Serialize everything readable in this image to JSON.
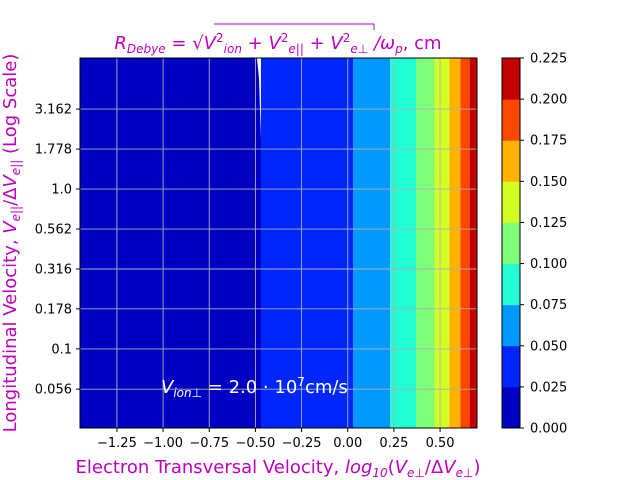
{
  "chart_data": {
    "type": "heatmap",
    "subtype": "filled-contour",
    "title": {
      "parts": [
        {
          "t": "R",
          "style": "italic"
        },
        {
          "t": "Debye",
          "style": "sub-italic"
        },
        {
          "t": " = ",
          "style": "normal"
        },
        {
          "t": "√",
          "style": "normal"
        },
        {
          "t": "V²ion + V²e|| + V²e⊥",
          "style": "radicand"
        },
        {
          "t": " /ω",
          "style": "italic"
        },
        {
          "t": "p",
          "style": "sub-italic"
        },
        {
          "t": ", cm",
          "style": "normal"
        }
      ],
      "radicand_parts": [
        {
          "t": "V",
          "style": "italic"
        },
        {
          "t": "2",
          "style": "sup"
        },
        {
          "t": "ion",
          "style": "sub-italic"
        },
        {
          "t": " + ",
          "style": "normal"
        },
        {
          "t": "V",
          "style": "italic"
        },
        {
          "t": "2",
          "style": "sup"
        },
        {
          "t": "e||",
          "style": "sub-italic"
        },
        {
          "t": " + ",
          "style": "normal"
        },
        {
          "t": "V",
          "style": "italic"
        },
        {
          "t": "2",
          "style": "sup"
        },
        {
          "t": "e⊥",
          "style": "sub-italic"
        }
      ]
    },
    "xlabel": "Electron Transversal Velocity, log10(Ve⊥/ΔVe⊥)",
    "ylabel": "Longitudinal Velocity, Ve||/ΔVe|| (Log Scale)",
    "annotation": "Vion⊥ = 2.0·10⁷cm/s",
    "xlim": [
      -1.45,
      0.7
    ],
    "x_ticks": [
      -1.25,
      -1.0,
      -0.75,
      -0.5,
      -0.25,
      0.0,
      0.25,
      0.5
    ],
    "x_tick_labels": [
      "−1.25",
      "−1.00",
      "−0.75",
      "−0.50",
      "−0.25",
      "0.00",
      "0.25",
      "0.50"
    ],
    "y_scale": "log10",
    "ylim": [
      0.032,
      6.6
    ],
    "y_ticks": [
      0.056,
      0.1,
      0.178,
      0.316,
      0.562,
      1.0,
      1.778,
      3.162
    ],
    "y_tick_labels": [
      "0.056",
      "0.1",
      "0.178",
      "0.316",
      "0.562",
      "1.0",
      "1.778",
      "3.162"
    ],
    "grid": true,
    "levels": [
      0.0,
      0.025,
      0.05,
      0.075,
      0.1,
      0.125,
      0.15,
      0.175,
      0.2,
      0.225
    ],
    "colorbar_tick_labels": [
      "0.000",
      "0.025",
      "0.050",
      "0.075",
      "0.100",
      "0.125",
      "0.150",
      "0.175",
      "0.200",
      "0.225"
    ],
    "level_colors": [
      "#0000c3",
      "#0026ff",
      "#0099ff",
      "#22ffd4",
      "#7dff7a",
      "#d4ff22",
      "#ffb300",
      "#ff4700",
      "#c30000"
    ],
    "contour_boundaries_x": [
      -0.47,
      0.03,
      0.23,
      0.37,
      0.47,
      0.55,
      0.61,
      0.66
    ],
    "contour_boundary_note": "first boundary bends to -0.48 at the top and -0.44 near y=0.2",
    "colors": {
      "label_magenta": "#bf00bf",
      "annotation_text": "#ffffff",
      "grid": "#b0b0b0"
    }
  }
}
